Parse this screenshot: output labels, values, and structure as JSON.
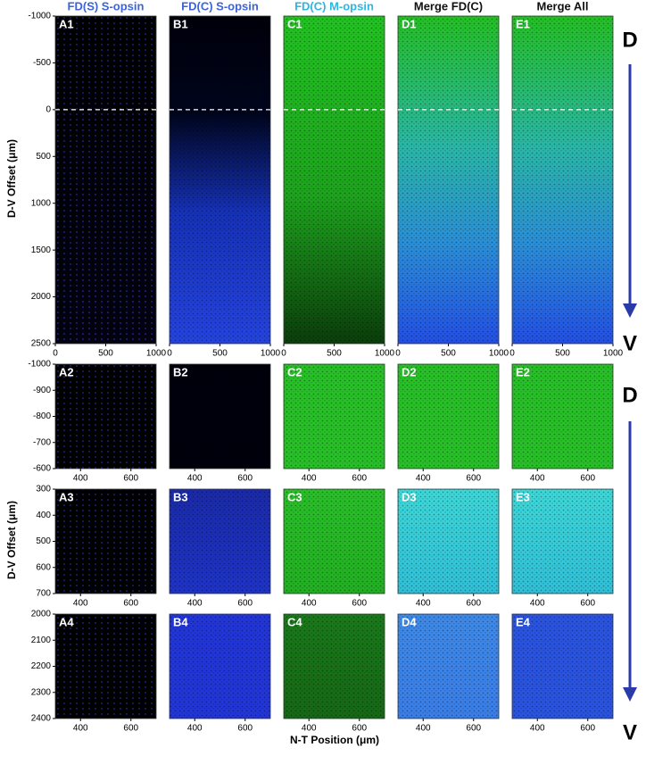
{
  "columns": [
    {
      "title": "FD(S) S-opsin"
    },
    {
      "title": "FD(C) S-opsin"
    },
    {
      "title": "FD(C) M-opsin"
    },
    {
      "title": "Merge FD(C)"
    },
    {
      "title": "Merge All"
    }
  ],
  "rows": [
    {
      "panels": [
        "A1",
        "B1",
        "C1",
        "D1",
        "E1"
      ],
      "xlim": [
        0,
        1000
      ],
      "xticks": [
        0,
        500,
        1000
      ],
      "ylim": [
        -1000,
        2500
      ],
      "yticks": [
        -1000,
        -500,
        0,
        500,
        1000,
        1500,
        2000,
        2500
      ],
      "reference_line": 0
    },
    {
      "panels": [
        "A2",
        "B2",
        "C2",
        "D2",
        "E2"
      ],
      "xlim": [
        300,
        700
      ],
      "xticks": [
        400,
        600
      ],
      "ylim": [
        -1000,
        -600
      ],
      "yticks": [
        -1000,
        -900,
        -800,
        -700,
        -600
      ]
    },
    {
      "panels": [
        "A3",
        "B3",
        "C3",
        "D3",
        "E3"
      ],
      "xlim": [
        300,
        700
      ],
      "xticks": [
        400,
        600
      ],
      "ylim": [
        300,
        700
      ],
      "yticks": [
        300,
        400,
        500,
        600,
        700
      ]
    },
    {
      "panels": [
        "A4",
        "B4",
        "C4",
        "D4",
        "E4"
      ],
      "xlim": [
        300,
        700
      ],
      "xticks": [
        400,
        600
      ],
      "ylim": [
        2000,
        2400
      ],
      "yticks": [
        2000,
        2100,
        2200,
        2300,
        2400
      ]
    }
  ],
  "y_axis_label": "D-V Offset (μm)",
  "x_axis_label": "N-T Position (μm)",
  "direction": {
    "top": "D",
    "bottom": "V"
  }
}
